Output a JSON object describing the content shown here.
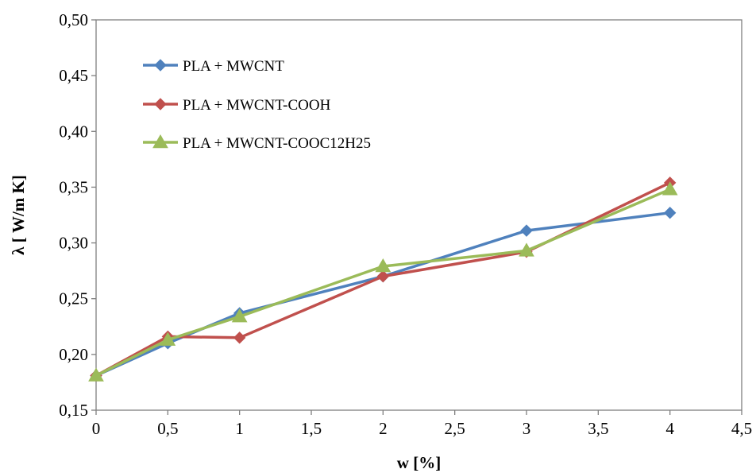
{
  "chart_data": {
    "type": "line",
    "title": "",
    "xlabel": "w [%]",
    "ylabel": "λ [ W/m K]",
    "xlim": [
      0,
      4.5
    ],
    "ylim": [
      0.15,
      0.5
    ],
    "x_ticks": [
      0,
      0.5,
      1,
      1.5,
      2,
      2.5,
      3,
      3.5,
      4,
      4.5
    ],
    "x_tick_labels": [
      "0",
      "0,5",
      "1",
      "1,5",
      "2",
      "2,5",
      "3",
      "3,5",
      "4",
      "4,5"
    ],
    "y_ticks": [
      0.15,
      0.2,
      0.25,
      0.3,
      0.35,
      0.4,
      0.45,
      0.5
    ],
    "y_tick_labels": [
      "0,15",
      "0,20",
      "0,25",
      "0,30",
      "0,35",
      "0,40",
      "0,45",
      "0,50"
    ],
    "grid": false,
    "legend_position": "top-left",
    "x": [
      0,
      0.5,
      1,
      2,
      3,
      4
    ],
    "series": [
      {
        "name": "PLA + MWCNT",
        "color": "#4F81BD",
        "marker": "diamond",
        "values": [
          0.181,
          0.21,
          0.237,
          0.27,
          0.311,
          0.327
        ]
      },
      {
        "name": "PLA + MWCNT-COOH",
        "color": "#C0504D",
        "marker": "diamond",
        "values": [
          0.181,
          0.216,
          0.215,
          0.27,
          0.292,
          0.354
        ]
      },
      {
        "name": "PLA + MWCNT-COOC12H25",
        "color": "#9BBB59",
        "marker": "triangle",
        "values": [
          0.181,
          0.213,
          0.234,
          0.279,
          0.293,
          0.348
        ]
      }
    ]
  }
}
